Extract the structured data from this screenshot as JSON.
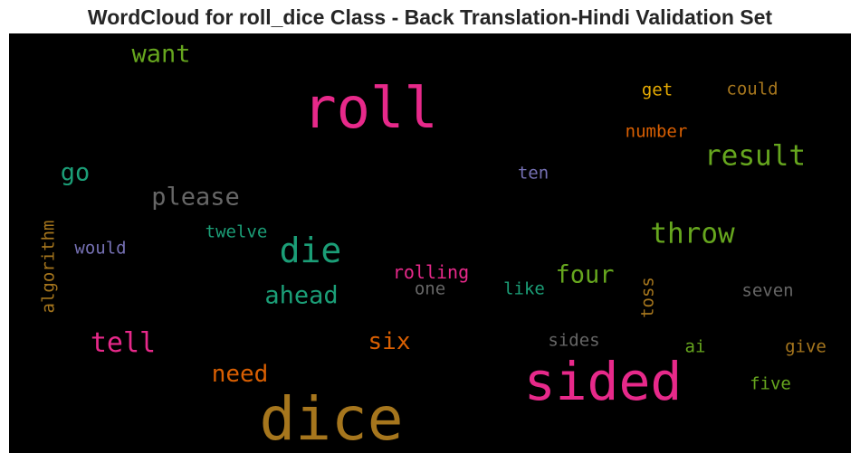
{
  "title": "WordCloud for roll_dice Class - Back Translation-Hindi Validation Set",
  "words": [
    {
      "text": "roll",
      "color": "#e7298a"
    },
    {
      "text": "dice",
      "color": "#a6761d"
    },
    {
      "text": "sided",
      "color": "#e7298a"
    },
    {
      "text": "die",
      "color": "#1b9e77"
    },
    {
      "text": "result",
      "color": "#66a61e"
    },
    {
      "text": "throw",
      "color": "#66a61e"
    },
    {
      "text": "tell",
      "color": "#e7298a"
    },
    {
      "text": "want",
      "color": "#66a61e"
    },
    {
      "text": "please",
      "color": "#666666"
    },
    {
      "text": "go",
      "color": "#1b9e77"
    },
    {
      "text": "ahead",
      "color": "#1b9e77"
    },
    {
      "text": "four",
      "color": "#66a61e"
    },
    {
      "text": "six",
      "color": "#d95f02"
    },
    {
      "text": "need",
      "color": "#d95f02"
    },
    {
      "text": "rolling",
      "color": "#e7298a"
    },
    {
      "text": "twelve",
      "color": "#1b9e77"
    },
    {
      "text": "would",
      "color": "#7570b3"
    },
    {
      "text": "algorithm",
      "color": "#a6761d"
    },
    {
      "text": "get",
      "color": "#e6ab02"
    },
    {
      "text": "could",
      "color": "#a6761d"
    },
    {
      "text": "number",
      "color": "#d95f02"
    },
    {
      "text": "ten",
      "color": "#7570b3"
    },
    {
      "text": "one",
      "color": "#666666"
    },
    {
      "text": "like",
      "color": "#1b9e77"
    },
    {
      "text": "toss",
      "color": "#a6761d"
    },
    {
      "text": "seven",
      "color": "#666666"
    },
    {
      "text": "sides",
      "color": "#666666"
    },
    {
      "text": "ai",
      "color": "#66a61e"
    },
    {
      "text": "give",
      "color": "#a6761d"
    },
    {
      "text": "five",
      "color": "#66a61e"
    }
  ]
}
